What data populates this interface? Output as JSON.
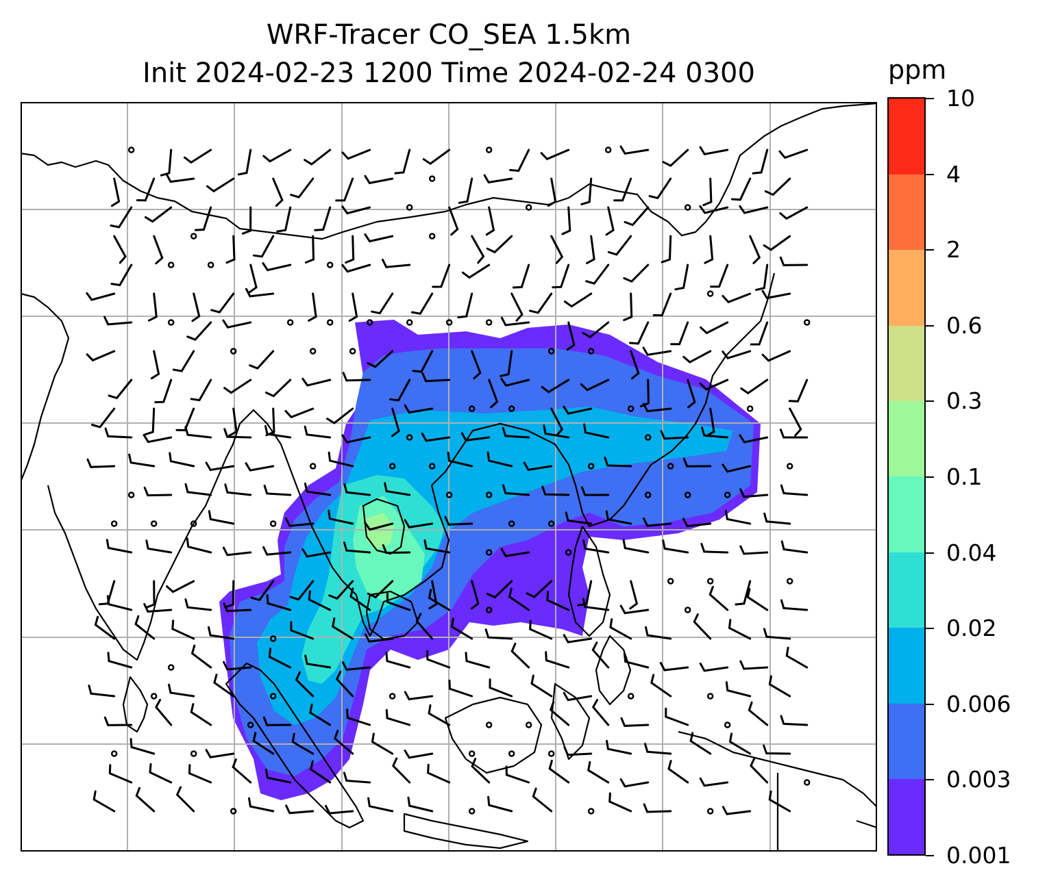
{
  "title": {
    "line1": "WRF-Tracer CO_SEA 1.5km",
    "line2": "Init 2024-02-23 1200 Time 2024-02-24 0300"
  },
  "colorbar": {
    "unit": "ppm",
    "levels": [
      {
        "label": "0.001",
        "color": "#6a2bff"
      },
      {
        "label": "0.003",
        "color": "#3f6ff2"
      },
      {
        "label": "0.006",
        "color": "#00b0ec"
      },
      {
        "label": "0.02",
        "color": "#30dfd4"
      },
      {
        "label": "0.04",
        "color": "#68f7bc"
      },
      {
        "label": "0.1",
        "color": "#9ef89a"
      },
      {
        "label": "0.3",
        "color": "#cfe08a"
      },
      {
        "label": "0.6",
        "color": "#ffad5e"
      },
      {
        "label": "2",
        "color": "#ff6f3c"
      },
      {
        "label": "4",
        "color": "#ff2a18"
      },
      {
        "label": "10",
        "color": null
      }
    ]
  },
  "map": {
    "gridlines": true,
    "coastline_color": "#000000",
    "gridline_color": "#b0b0b0",
    "wind_barbs": true,
    "calm_marker": "circle"
  }
}
